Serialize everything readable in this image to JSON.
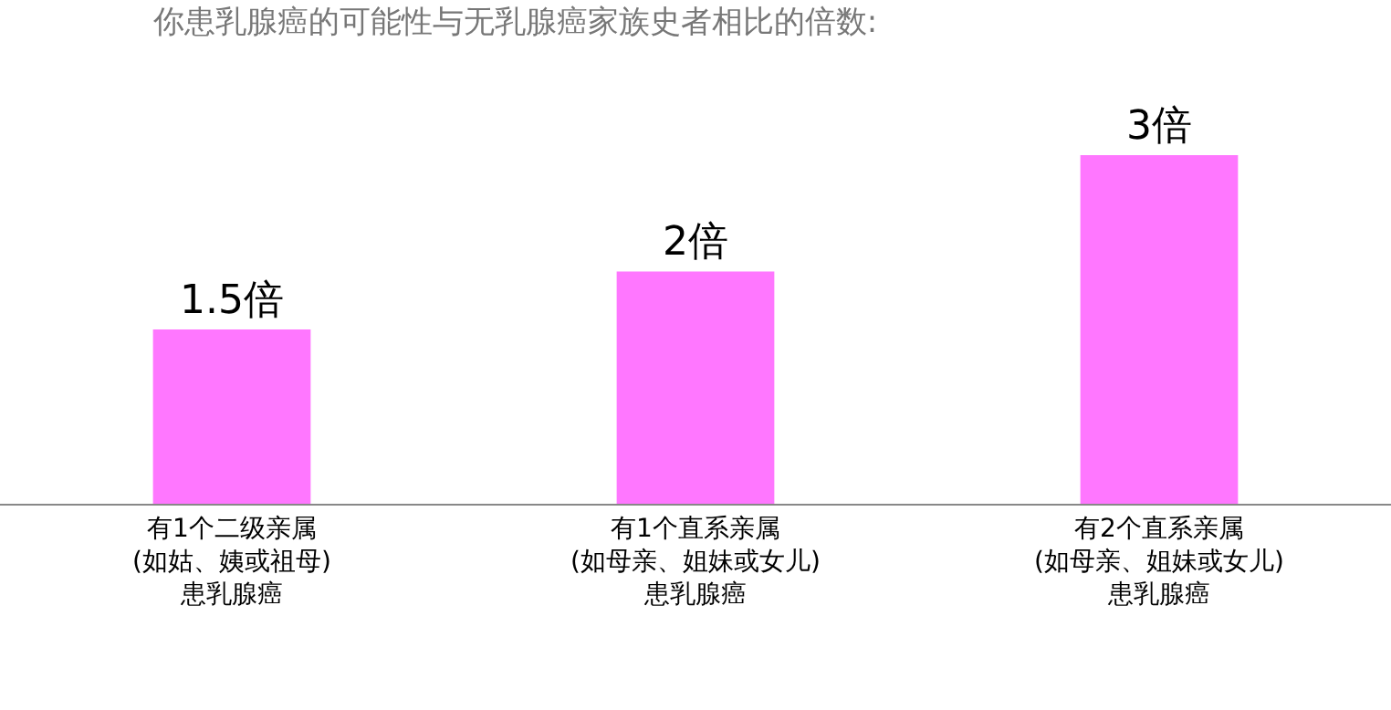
{
  "chart_data": {
    "type": "bar",
    "title": "你患乳腺癌的可能性与无乳腺癌家族史者相比的倍数:",
    "categories": [
      "有1个二级亲属\n(如姑、姨或祖母)\n患乳腺癌",
      "有1个直系亲属\n(如母亲、姐妹或女儿)\n患乳腺癌",
      "有2个直系亲属\n(如母亲、姐妹或女儿)\n患乳腺癌"
    ],
    "values": [
      1.5,
      2,
      3
    ],
    "value_labels": [
      "1.5倍",
      "2倍",
      "3倍"
    ],
    "color": "#ff77ff",
    "tick_labels": "x"
  }
}
